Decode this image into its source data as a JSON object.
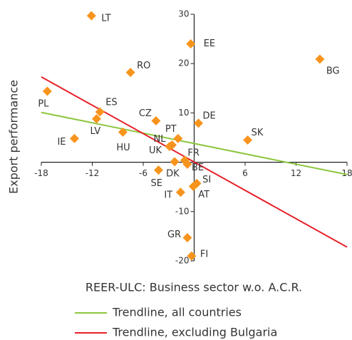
{
  "chart_data": {
    "type": "scatter",
    "x_label": "REER-ULC: Business sector w.o. A.C.R.",
    "y_label": "Export performance",
    "xlim": [
      -18,
      18
    ],
    "ylim": [
      -20,
      30
    ],
    "xticks": [
      -18,
      -12,
      -6,
      6,
      12,
      18
    ],
    "yticks": [
      30,
      20,
      10,
      -10,
      -20
    ],
    "points": {
      "color": "#f7941d",
      "labels": [
        "LT",
        "EE",
        "BG",
        "RO",
        "PL",
        "ES",
        "LV",
        "CZ",
        "DE",
        "PT",
        "HU",
        "IE",
        "SK",
        "NL",
        "UK",
        "FR",
        "BE",
        "DK",
        "SE",
        "SI",
        "AT",
        "IT",
        "GR",
        "FI"
      ],
      "x": [
        -12.1,
        -0.4,
        14.8,
        -7.5,
        -17.3,
        -11.1,
        -11.5,
        -4.5,
        0.5,
        -1.9,
        -8.4,
        -14.1,
        6.3,
        -2.6,
        -2.9,
        -1.1,
        -0.8,
        -2.3,
        -4.2,
        0.3,
        -0.1,
        -1.6,
        -0.8,
        -0.3
      ],
      "y": [
        29.7,
        24.0,
        20.9,
        18.2,
        14.4,
        10.2,
        8.8,
        8.4,
        7.9,
        4.8,
        6.1,
        4.8,
        4.5,
        3.5,
        3.2,
        0.4,
        -0.4,
        0.1,
        -1.6,
        -4.3,
        -4.9,
        -6.1,
        -15.3,
        -19.0
      ]
    },
    "series": [
      {
        "name": "Trendline, all countries",
        "color": "#8dc63f",
        "x": [
          -18,
          18
        ],
        "values": [
          10.1,
          -2.5
        ]
      },
      {
        "name": "Trendline, excluding Bulgaria",
        "color": "#e8202a",
        "x": [
          -18,
          18
        ],
        "values": [
          17.3,
          -17.2
        ]
      }
    ]
  }
}
